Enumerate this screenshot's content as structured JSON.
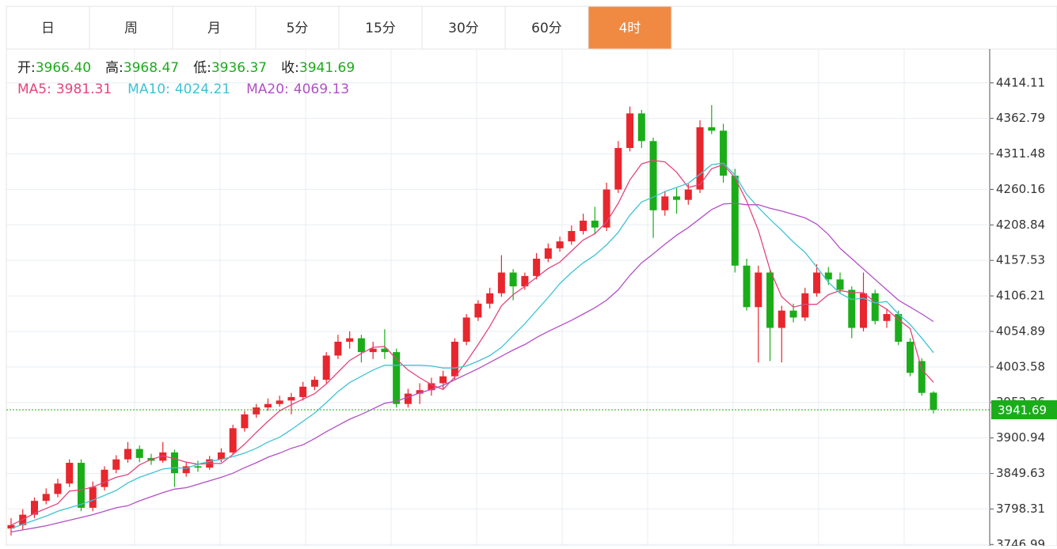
{
  "tabs": [
    "日",
    "周",
    "月",
    "5分",
    "15分",
    "30分",
    "60分",
    "4时"
  ],
  "active_tab": 7,
  "chart_data": {
    "type": "candlestick",
    "summary": [
      {
        "label": "开:",
        "value": {
          "value": 3966.4,
          "label": "3966.40"
        }
      },
      {
        "label": "高:",
        "value": 3968.47
      },
      {
        "label": "低:",
        "value": 3936.37
      },
      {
        "label": "收:",
        "value": 3941.69
      }
    ],
    "up_color": "#e8262d",
    "down_color": "#1aad19",
    "open": [
      3770,
      3775,
      3790,
      3810,
      3820,
      3835,
      3865,
      3800,
      3830,
      3855,
      3870,
      3885,
      3872,
      3868,
      3880,
      3850,
      3860,
      3858,
      3870,
      3880,
      3915,
      3935,
      3945,
      3950,
      3955,
      3960,
      3975,
      3985,
      4020,
      4040,
      4045,
      4025,
      4030,
      4025,
      3950,
      3965,
      3970,
      3980,
      3990,
      4040,
      4075,
      4095,
      4110,
      4140,
      4120,
      4135,
      4160,
      4175,
      4185,
      4200,
      4215,
      4205,
      4260,
      4320,
      4370,
      4330,
      4230,
      4250,
      4245,
      4260,
      4350,
      4345,
      4280,
      4150,
      4090,
      4140,
      4060,
      4085,
      4075,
      4110,
      4140,
      4130,
      4115,
      4060,
      4110,
      4070,
      4080,
      4040,
      4012,
      3966.4
    ],
    "high": [
      3785,
      3798,
      3815,
      3828,
      3842,
      3870,
      3870,
      3838,
      3860,
      3876,
      3895,
      3890,
      3878,
      3895,
      3884,
      3866,
      3868,
      3875,
      3886,
      3920,
      3940,
      3950,
      3958,
      3962,
      3966,
      3982,
      3990,
      4025,
      4050,
      4055,
      4050,
      4040,
      4058,
      4030,
      3972,
      3980,
      3988,
      3998,
      4045,
      4080,
      4100,
      4118,
      4165,
      4145,
      4140,
      4168,
      4182,
      4192,
      4208,
      4225,
      4235,
      4270,
      4330,
      4380,
      4375,
      4335,
      4258,
      4262,
      4268,
      4360,
      4382,
      4355,
      4290,
      4160,
      4150,
      4145,
      4092,
      4095,
      4118,
      4152,
      4148,
      4140,
      4120,
      4140,
      4115,
      4088,
      4085,
      4045,
      4016,
      3968.47
    ],
    "low": [
      3760,
      3768,
      3785,
      3805,
      3815,
      3830,
      3795,
      3795,
      3825,
      3850,
      3865,
      3866,
      3862,
      3865,
      3830,
      3845,
      3852,
      3855,
      3866,
      3876,
      3910,
      3930,
      3940,
      3946,
      3935,
      3955,
      3970,
      3980,
      4015,
      4030,
      4010,
      4015,
      4015,
      3945,
      3945,
      3950,
      3962,
      3972,
      3985,
      4035,
      4070,
      4088,
      4105,
      4100,
      4115,
      4130,
      4155,
      4170,
      4180,
      4195,
      4195,
      4200,
      4255,
      4315,
      4320,
      4190,
      4222,
      4225,
      4238,
      4255,
      4340,
      4270,
      4140,
      4085,
      4010,
      4012,
      4010,
      4068,
      4070,
      4105,
      4122,
      4110,
      4045,
      4055,
      4065,
      4060,
      4035,
      3990,
      3962,
      3936.37
    ],
    "close": [
      3775,
      3790,
      3810,
      3820,
      3835,
      3865,
      3800,
      3830,
      3855,
      3870,
      3885,
      3872,
      3868,
      3880,
      3850,
      3860,
      3858,
      3870,
      3880,
      3915,
      3935,
      3945,
      3950,
      3955,
      3960,
      3975,
      3985,
      4020,
      4040,
      4045,
      4025,
      4030,
      4025,
      3950,
      3965,
      3970,
      3980,
      3990,
      4040,
      4075,
      4095,
      4110,
      4140,
      4120,
      4135,
      4160,
      4175,
      4185,
      4200,
      4215,
      4205,
      4260,
      4320,
      4370,
      4330,
      4230,
      4250,
      4245,
      4260,
      4350,
      4345,
      4280,
      4150,
      4090,
      4140,
      4060,
      4085,
      4075,
      4110,
      4140,
      4130,
      4115,
      4060,
      4110,
      4070,
      4080,
      4040,
      3995,
      3966,
      3941.69
    ],
    "series": [
      {
        "name": "MA5:",
        "color": "#e3457d",
        "last": 3981.31,
        "values": [
          3775,
          3783,
          3792,
          3799,
          3806,
          3824,
          3826,
          3830,
          3837,
          3844,
          3848,
          3862,
          3870,
          3875,
          3871,
          3866,
          3863,
          3864,
          3864,
          3877,
          3892,
          3909,
          3925,
          3940,
          3949,
          3957,
          3965,
          3979,
          3996,
          4013,
          4023,
          4032,
          4033,
          4015,
          3999,
          3988,
          3978,
          3971,
          3989,
          4011,
          4036,
          4062,
          4092,
          4108,
          4120,
          4133,
          4146,
          4155,
          4171,
          4187,
          4196,
          4213,
          4240,
          4274,
          4297,
          4302,
          4300,
          4285,
          4263,
          4267,
          4290,
          4296,
          4277,
          4243,
          4201,
          4144,
          4105,
          4090,
          4094,
          4094,
          4108,
          4114,
          4111,
          4111,
          4097,
          4087,
          4072,
          4059,
          4000,
          3981.31
        ]
      },
      {
        "name": "MA10:",
        "color": "#3ec3d5",
        "last": 4024.21,
        "values": [
          3770,
          3776,
          3782,
          3788,
          3795,
          3800,
          3805,
          3811,
          3818,
          3825,
          3836,
          3844,
          3850,
          3856,
          3858,
          3857,
          3863,
          3867,
          3870,
          3874,
          3879,
          3886,
          3895,
          3902,
          3913,
          3925,
          3937,
          3952,
          3968,
          3981,
          3990,
          3999,
          4006,
          4006,
          4006,
          4006,
          4005,
          4002,
          4002,
          4005,
          4012,
          4020,
          4032,
          4049,
          4066,
          4085,
          4104,
          4124,
          4140,
          4154,
          4165,
          4180,
          4198,
          4223,
          4242,
          4249,
          4257,
          4263,
          4269,
          4282,
          4296,
          4298,
          4281,
          4253,
          4234,
          4217,
          4201,
          4184,
          4169,
          4148,
          4126,
          4110,
          4101,
          4103,
          4096,
          4098,
          4080,
          4065,
          4045,
          4024.21
        ]
      },
      {
        "name": "MA20:",
        "color": "#b24fc6",
        "last": 4069.13,
        "values": [
          3765,
          3768,
          3771,
          3774,
          3778,
          3782,
          3786,
          3790,
          3795,
          3800,
          3803,
          3810,
          3816,
          3822,
          3827,
          3829,
          3834,
          3839,
          3844,
          3850,
          3858,
          3865,
          3873,
          3879,
          3886,
          3891,
          3900,
          3910,
          3919,
          3928,
          3935,
          3943,
          3951,
          3954,
          3960,
          3966,
          3971,
          3977,
          3985,
          3993,
          4001,
          4010,
          4019,
          4028,
          4036,
          4046,
          4055,
          4063,
          4071,
          4080,
          4089,
          4100,
          4115,
          4136,
          4154,
          4167,
          4181,
          4194,
          4205,
          4218,
          4231,
          4239,
          4240,
          4238,
          4238,
          4233,
          4229,
          4224,
          4219,
          4210,
          4195,
          4175,
          4160,
          4145,
          4130,
          4115,
          4100,
          4090,
          4080,
          4069.13
        ]
      }
    ],
    "ylim": [
      3745,
      4463
    ],
    "yticks": [
      3746.99,
      3798.31,
      3849.63,
      3900.94,
      3952.26,
      4003.58,
      4054.89,
      4106.21,
      4157.53,
      4208.84,
      4260.16,
      4311.48,
      4362.79,
      4414.11
    ],
    "grid": true
  }
}
